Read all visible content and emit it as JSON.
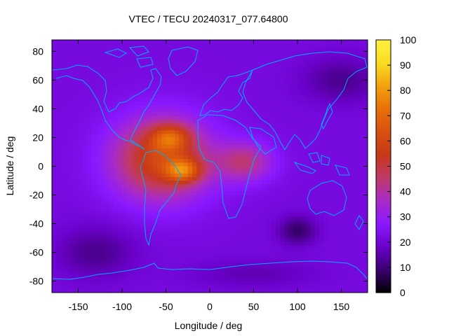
{
  "chart_data": {
    "type": "heatmap",
    "title": "VTEC / TECU 20240317_077.64800",
    "xlabel": "Longitude / deg",
    "ylabel": "Latitude / deg",
    "xlim": [
      -180,
      180
    ],
    "ylim": [
      -88,
      88
    ],
    "xticks": [
      -150,
      -100,
      -50,
      0,
      50,
      100,
      150
    ],
    "yticks": [
      -80,
      -60,
      -40,
      -20,
      0,
      20,
      40,
      60,
      80
    ],
    "colorbar": {
      "min": 0,
      "max": 100,
      "ticks": [
        0,
        10,
        20,
        30,
        40,
        50,
        60,
        70,
        80,
        90,
        100
      ],
      "palette": [
        "#000000",
        "#3a0070",
        "#6a00c8",
        "#8a18ff",
        "#a82bc8",
        "#c03a6a",
        "#c8381a",
        "#d85010",
        "#e87008",
        "#f2a010",
        "#fadc20",
        "#fff040"
      ]
    },
    "grid_resolution_deg": {
      "lon": 5,
      "lat": 2.5
    },
    "background_tec": 22,
    "features": [
      {
        "name": "main-crest-north",
        "lon": -45,
        "lat": 20,
        "peak_tec": 80
      },
      {
        "name": "main-crest-south",
        "lon": -30,
        "lat": -3,
        "peak_tec": 85
      },
      {
        "name": "plasma-envelope",
        "lon": -55,
        "lat": 5,
        "peak_tec": 60
      },
      {
        "name": "atlantic-african-extension",
        "lon": 40,
        "lat": 3,
        "peak_tec": 48
      },
      {
        "name": "high-south-pacific",
        "lon": -130,
        "lat": -60,
        "peak_tec": 8
      },
      {
        "name": "low-indian-ocean",
        "lon": 100,
        "lat": -45,
        "peak_tec": 6
      },
      {
        "name": "low-siberia",
        "lon": 150,
        "lat": 60,
        "peak_tec": 10
      },
      {
        "name": "low-antarctic",
        "lon": 50,
        "lat": -75,
        "peak_tec": 12
      }
    ],
    "overlay": "coastlines",
    "coastline_color": "#00aaff"
  }
}
